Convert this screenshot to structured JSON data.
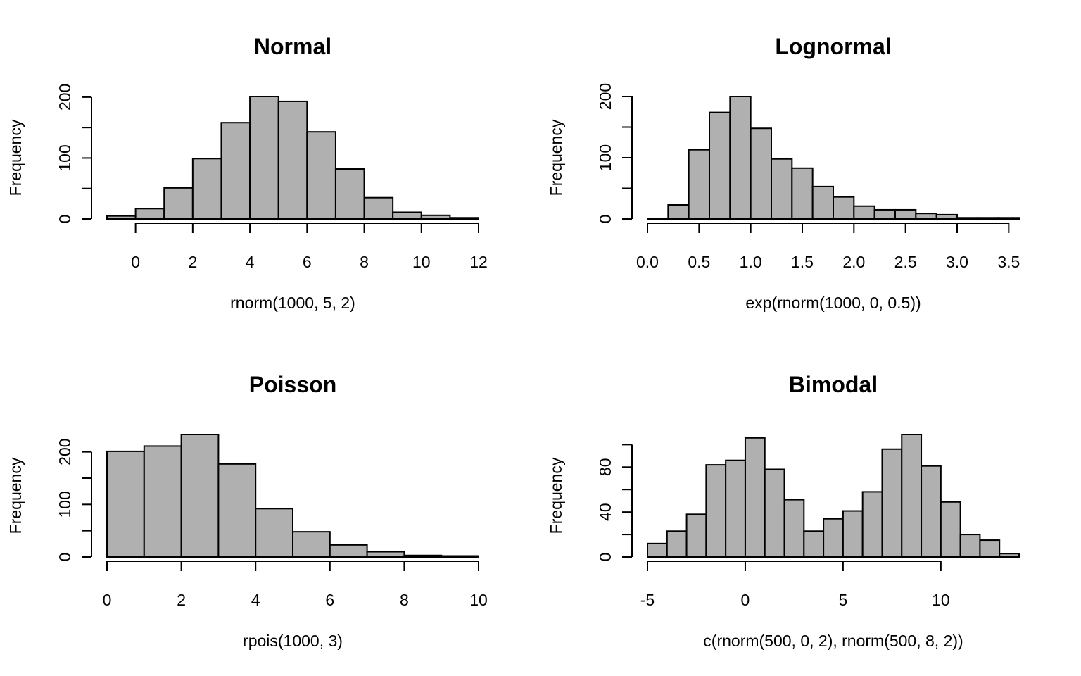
{
  "colors": {
    "bar_fill": "#b0b0b0",
    "bar_stroke": "#000000",
    "axis": "#000000",
    "background": "#ffffff"
  },
  "chart_data": [
    {
      "type": "bar",
      "title": "Normal",
      "xlabel": "rnorm(1000, 5, 2)",
      "ylabel": "Frequency",
      "grid": false,
      "bins": [
        [
          -1,
          0
        ],
        [
          0,
          1
        ],
        [
          1,
          2
        ],
        [
          2,
          3
        ],
        [
          3,
          4
        ],
        [
          4,
          5
        ],
        [
          5,
          6
        ],
        [
          6,
          7
        ],
        [
          7,
          8
        ],
        [
          8,
          9
        ],
        [
          9,
          10
        ],
        [
          10,
          11
        ],
        [
          11,
          12
        ]
      ],
      "values": [
        5,
        17,
        51,
        99,
        158,
        201,
        193,
        143,
        82,
        35,
        11,
        6,
        2
      ],
      "xlim": [
        -1,
        12
      ],
      "ylim": [
        0,
        201
      ],
      "x_ticks": [
        0,
        2,
        4,
        6,
        8,
        10,
        12
      ],
      "x_tick_labels": [
        "0",
        "2",
        "4",
        "6",
        "8",
        "10",
        "12"
      ],
      "y_ticks": [
        0,
        50,
        100,
        150,
        200
      ],
      "y_tick_labels": [
        "0",
        "",
        "100",
        "",
        "200"
      ]
    },
    {
      "type": "bar",
      "title": "Lognormal",
      "xlabel": "exp(rnorm(1000, 0, 0.5))",
      "ylabel": "Frequency",
      "grid": false,
      "bins": [
        [
          0,
          0.2
        ],
        [
          0.2,
          0.4
        ],
        [
          0.4,
          0.6
        ],
        [
          0.6,
          0.8
        ],
        [
          0.8,
          1.0
        ],
        [
          1.0,
          1.2
        ],
        [
          1.2,
          1.4
        ],
        [
          1.4,
          1.6
        ],
        [
          1.6,
          1.8
        ],
        [
          1.8,
          2.0
        ],
        [
          2.0,
          2.2
        ],
        [
          2.2,
          2.4
        ],
        [
          2.4,
          2.6
        ],
        [
          2.6,
          2.8
        ],
        [
          2.8,
          3.0
        ],
        [
          3.0,
          3.2
        ],
        [
          3.2,
          3.4
        ],
        [
          3.4,
          3.6
        ]
      ],
      "values": [
        1,
        23,
        113,
        174,
        200,
        148,
        98,
        83,
        53,
        36,
        21,
        15,
        15,
        9,
        7,
        2,
        2,
        2
      ],
      "xlim": [
        0,
        3.6
      ],
      "ylim": [
        0,
        200
      ],
      "x_ticks": [
        0,
        0.5,
        1.0,
        1.5,
        2.0,
        2.5,
        3.0,
        3.5
      ],
      "x_tick_labels": [
        "0.0",
        "0.5",
        "1.0",
        "1.5",
        "2.0",
        "2.5",
        "3.0",
        "3.5"
      ],
      "y_ticks": [
        0,
        50,
        100,
        150,
        200
      ],
      "y_tick_labels": [
        "0",
        "",
        "100",
        "",
        "200"
      ]
    },
    {
      "type": "bar",
      "title": "Poisson",
      "xlabel": "rpois(1000, 3)",
      "ylabel": "Frequency",
      "grid": false,
      "bins": [
        [
          0,
          1
        ],
        [
          1,
          2
        ],
        [
          2,
          3
        ],
        [
          3,
          4
        ],
        [
          4,
          5
        ],
        [
          5,
          6
        ],
        [
          6,
          7
        ],
        [
          7,
          8
        ],
        [
          8,
          9
        ],
        [
          9,
          10
        ]
      ],
      "values": [
        201,
        211,
        233,
        177,
        92,
        48,
        23,
        10,
        3,
        2
      ],
      "xlim": [
        0,
        10
      ],
      "ylim": [
        0,
        233
      ],
      "x_ticks": [
        0,
        2,
        4,
        6,
        8,
        10
      ],
      "x_tick_labels": [
        "0",
        "2",
        "4",
        "6",
        "8",
        "10"
      ],
      "y_ticks": [
        0,
        50,
        100,
        150,
        200
      ],
      "y_tick_labels": [
        "0",
        "",
        "100",
        "",
        "200"
      ]
    },
    {
      "type": "bar",
      "title": "Bimodal",
      "xlabel": "c(rnorm(500, 0, 2), rnorm(500, 8, 2))",
      "ylabel": "Frequency",
      "grid": false,
      "bins": [
        [
          -5,
          -4
        ],
        [
          -4,
          -3
        ],
        [
          -3,
          -2
        ],
        [
          -2,
          -1
        ],
        [
          -1,
          0
        ],
        [
          0,
          1
        ],
        [
          1,
          2
        ],
        [
          2,
          3
        ],
        [
          3,
          4
        ],
        [
          4,
          5
        ],
        [
          5,
          6
        ],
        [
          6,
          7
        ],
        [
          7,
          8
        ],
        [
          8,
          9
        ],
        [
          9,
          10
        ],
        [
          10,
          11
        ],
        [
          11,
          12
        ],
        [
          12,
          13
        ],
        [
          13,
          14
        ]
      ],
      "values": [
        12,
        23,
        38,
        82,
        86,
        106,
        78,
        51,
        23,
        34,
        41,
        58,
        96,
        109,
        81,
        49,
        20,
        15,
        3
      ],
      "xlim": [
        -5,
        14
      ],
      "ylim": [
        0,
        109
      ],
      "x_ticks": [
        -5,
        0,
        5,
        10
      ],
      "x_tick_labels": [
        "-5",
        "0",
        "5",
        "10"
      ],
      "y_ticks": [
        0,
        20,
        40,
        60,
        80,
        100
      ],
      "y_tick_labels": [
        "0",
        "",
        "40",
        "",
        "80",
        ""
      ]
    }
  ]
}
